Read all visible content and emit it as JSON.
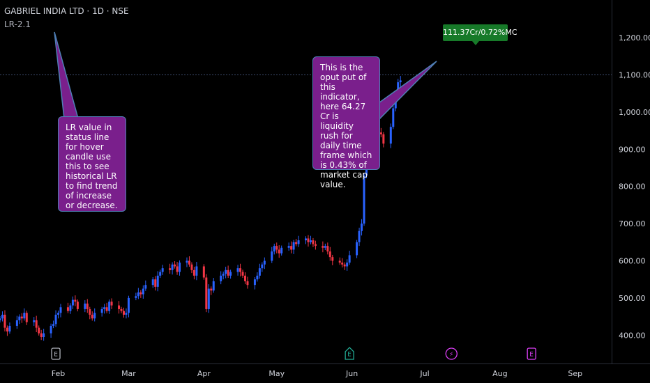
{
  "header": {
    "symbol_title": "GABRIEL INDIA LTD · 1D · NSE",
    "indicator_label": "LR-2.1"
  },
  "annotations": {
    "left_note": "LR value in status line for hover candle use this to see historical LR to find trend of increase or decrease.",
    "right_note": "This is the oput put of this indicator, here 64.27 Cr is liquidity rush for daily time frame which is 0.43% of market cap value.",
    "lr_badge": "111.37Cr/0.72%MC"
  },
  "colors": {
    "background": "#000000",
    "bullish": "#2962ff",
    "bearish": "#f23645",
    "note_fill": "#7a1f8c",
    "note_border": "#4f7fb5",
    "badge_fill": "#177a29",
    "axis_text": "#d1d4dc",
    "gridline": "#3b4a6b"
  },
  "events": [
    {
      "icon": "earnings-icon",
      "label": "E",
      "color": "#b2b5be",
      "date": "2024-01-31"
    },
    {
      "icon": "dividend-icon",
      "label": "E",
      "color": "#22ab94",
      "date": "2024-05-31"
    },
    {
      "icon": "split-icon",
      "label": "⚡",
      "color": "#e040fb",
      "date": "2024-07-12"
    },
    {
      "icon": "earnings-icon",
      "label": "E",
      "color": "#e040fb",
      "date": "2024-08-14"
    }
  ],
  "chart_data": {
    "type": "candlestick",
    "title": "GABRIEL INDIA LTD · 1D · NSE",
    "x_ticks": [
      "Feb",
      "Mar",
      "Apr",
      "May",
      "Jun",
      "Jul",
      "Aug",
      "Sep"
    ],
    "x_tick_dates": [
      "2024-02-01",
      "2024-03-01",
      "2024-04-01",
      "2024-05-01",
      "2024-06-01",
      "2024-07-01",
      "2024-08-01",
      "2024-09-01"
    ],
    "y_ticks": [
      400,
      500,
      600,
      700,
      800,
      900,
      1000,
      1100,
      1200
    ],
    "y_tick_labels": [
      "400.00",
      "500.00",
      "600.00",
      "700.00",
      "800.00",
      "900.00",
      "1,000.00",
      "1,100.00",
      "1,200.00"
    ],
    "ylim": [
      350,
      1260
    ],
    "xlim": [
      "2024-01-08",
      "2024-09-16"
    ],
    "horizontal_line": 1100,
    "grid": false,
    "series": [
      {
        "name": "",
        "closes": [
          445,
          455,
          420,
          410,
          425,
          440,
          450,
          445,
          460,
          435,
          440,
          420,
          405,
          395,
          405,
          425,
          430,
          455,
          460,
          475,
          465,
          480,
          495,
          490,
          470,
          485,
          470,
          455,
          445,
          460,
          470,
          475,
          465,
          490,
          480,
          470,
          465,
          455,
          460,
          500,
          505,
          515,
          510,
          525,
          535,
          550,
          530,
          560,
          570,
          580,
          575,
          590,
          585,
          570,
          595,
          600,
          590,
          575,
          560,
          585,
          555,
          470,
          525,
          520,
          545,
          560,
          565,
          575,
          560,
          570,
          580,
          570,
          560,
          545,
          535,
          550,
          560,
          580,
          590,
          600,
          625,
          640,
          630,
          620,
          635,
          640,
          630,
          650,
          645,
          655,
          660,
          650,
          655,
          645,
          640,
          635,
          640,
          625,
          610,
          600,
          595,
          590,
          585,
          595,
          615,
          650,
          680,
          700,
          830,
          990,
          1030,
          950,
          945,
          940,
          915,
          960,
          1010,
          1050,
          1080,
          1085
        ]
      }
    ]
  }
}
